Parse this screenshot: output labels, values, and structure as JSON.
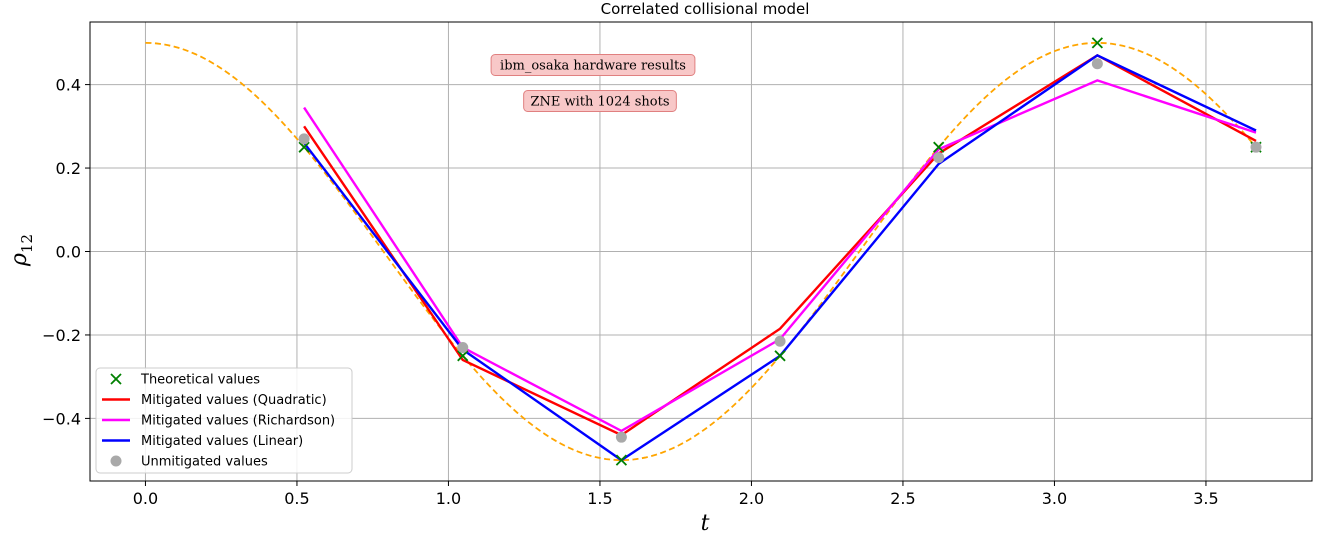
{
  "chart_data": {
    "type": "line",
    "title": "Correlated collisional model",
    "xlabel": "t",
    "ylabel_base": "ρ",
    "ylabel_sub": "12",
    "xlim": [
      -0.183,
      3.85
    ],
    "ylim": [
      -0.55,
      0.55
    ],
    "xticks": [
      0.0,
      0.5,
      1.0,
      1.5,
      2.0,
      2.5,
      3.0,
      3.5
    ],
    "xtick_labels": [
      "0.0",
      "0.5",
      "1.0",
      "1.5",
      "2.0",
      "2.5",
      "3.0",
      "3.5"
    ],
    "yticks": [
      -0.4,
      -0.2,
      0.0,
      0.2,
      0.4
    ],
    "ytick_labels": [
      "−0.4",
      "−0.2",
      "0.0",
      "0.2",
      "0.4"
    ],
    "grid": true,
    "legend_position": "lower-left",
    "annotations": [
      "ibm_osaka hardware results",
      "ZNE with 1024 shots"
    ],
    "theory_curve": {
      "name": "",
      "formula": "0.5*cos(2t)",
      "x_range": [
        0.0,
        3.665
      ],
      "color": "#ffa500",
      "style": "dashed"
    },
    "x": [
      0.5236,
      1.0472,
      1.5708,
      2.0944,
      2.618,
      3.1416,
      3.6652
    ],
    "series": [
      {
        "name": "Theoretical values",
        "kind": "marker-x",
        "color": "#008000",
        "values": [
          0.25,
          -0.25,
          -0.5,
          -0.25,
          0.25,
          0.5,
          0.25
        ]
      },
      {
        "name": "Mitigated values (Quadratic)",
        "kind": "line",
        "color": "#ff0000",
        "values": [
          0.3,
          -0.26,
          -0.44,
          -0.185,
          0.235,
          0.47,
          0.265
        ]
      },
      {
        "name": "Mitigated values (Richardson)",
        "kind": "line",
        "color": "#ff00ff",
        "values": [
          0.345,
          -0.23,
          -0.43,
          -0.21,
          0.245,
          0.41,
          0.285
        ]
      },
      {
        "name": "Mitigated values (Linear)",
        "kind": "line",
        "color": "#0000ff",
        "values": [
          0.26,
          -0.235,
          -0.5,
          -0.25,
          0.21,
          0.47,
          0.29
        ]
      },
      {
        "name": "Unmitigated values",
        "kind": "marker-dot",
        "color": "#a9a9a9",
        "values": [
          0.27,
          -0.23,
          -0.445,
          -0.215,
          0.225,
          0.45,
          0.25
        ]
      }
    ]
  }
}
